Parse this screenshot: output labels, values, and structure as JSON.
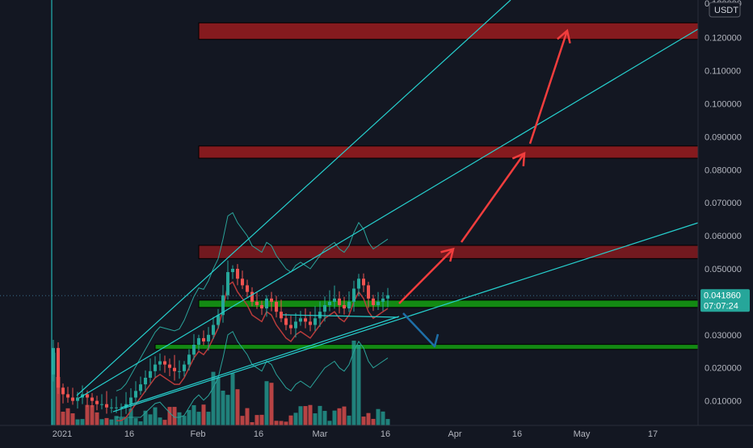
{
  "chart_data": {
    "type": "candlestick",
    "title": "",
    "quote_currency": "USDT",
    "last_price": "0.041860",
    "countdown": "07:07:24",
    "x_tick_labels": [
      "2021",
      "16",
      "Feb",
      "16",
      "Mar",
      "16",
      "Apr",
      "16",
      "May",
      "17"
    ],
    "y_tick_labels": [
      "0.120000",
      "0.110000",
      "0.100000",
      "0.090000",
      "0.080000",
      "0.070000",
      "0.060000",
      "0.050000",
      "0.040000",
      "0.030000",
      "0.020000",
      "0.010000"
    ],
    "y_top_label": "0.120000",
    "ylim": [
      0,
      0.127
    ],
    "grid": false,
    "resistance_zones": [
      {
        "from": 0.1195,
        "to": 0.1245
      },
      {
        "from": 0.0835,
        "to": 0.0872
      },
      {
        "from": 0.0531,
        "to": 0.0571
      }
    ],
    "support_zones": [
      {
        "from": 0.0383,
        "to": 0.0405
      },
      {
        "from": 0.0256,
        "to": 0.0271
      }
    ],
    "projection_targets": [
      0.056,
      0.0875,
      0.1225
    ],
    "downside_target": 0.0265,
    "colors": {
      "up": "#26a69a",
      "down": "#ef5350",
      "resistance": "#8b1a1f",
      "support": "#138a13",
      "trendline": "#26d0ce",
      "projection_up": "#f23d3d",
      "projection_down": "#1e6fa8",
      "price_label": "#26a69a"
    }
  }
}
